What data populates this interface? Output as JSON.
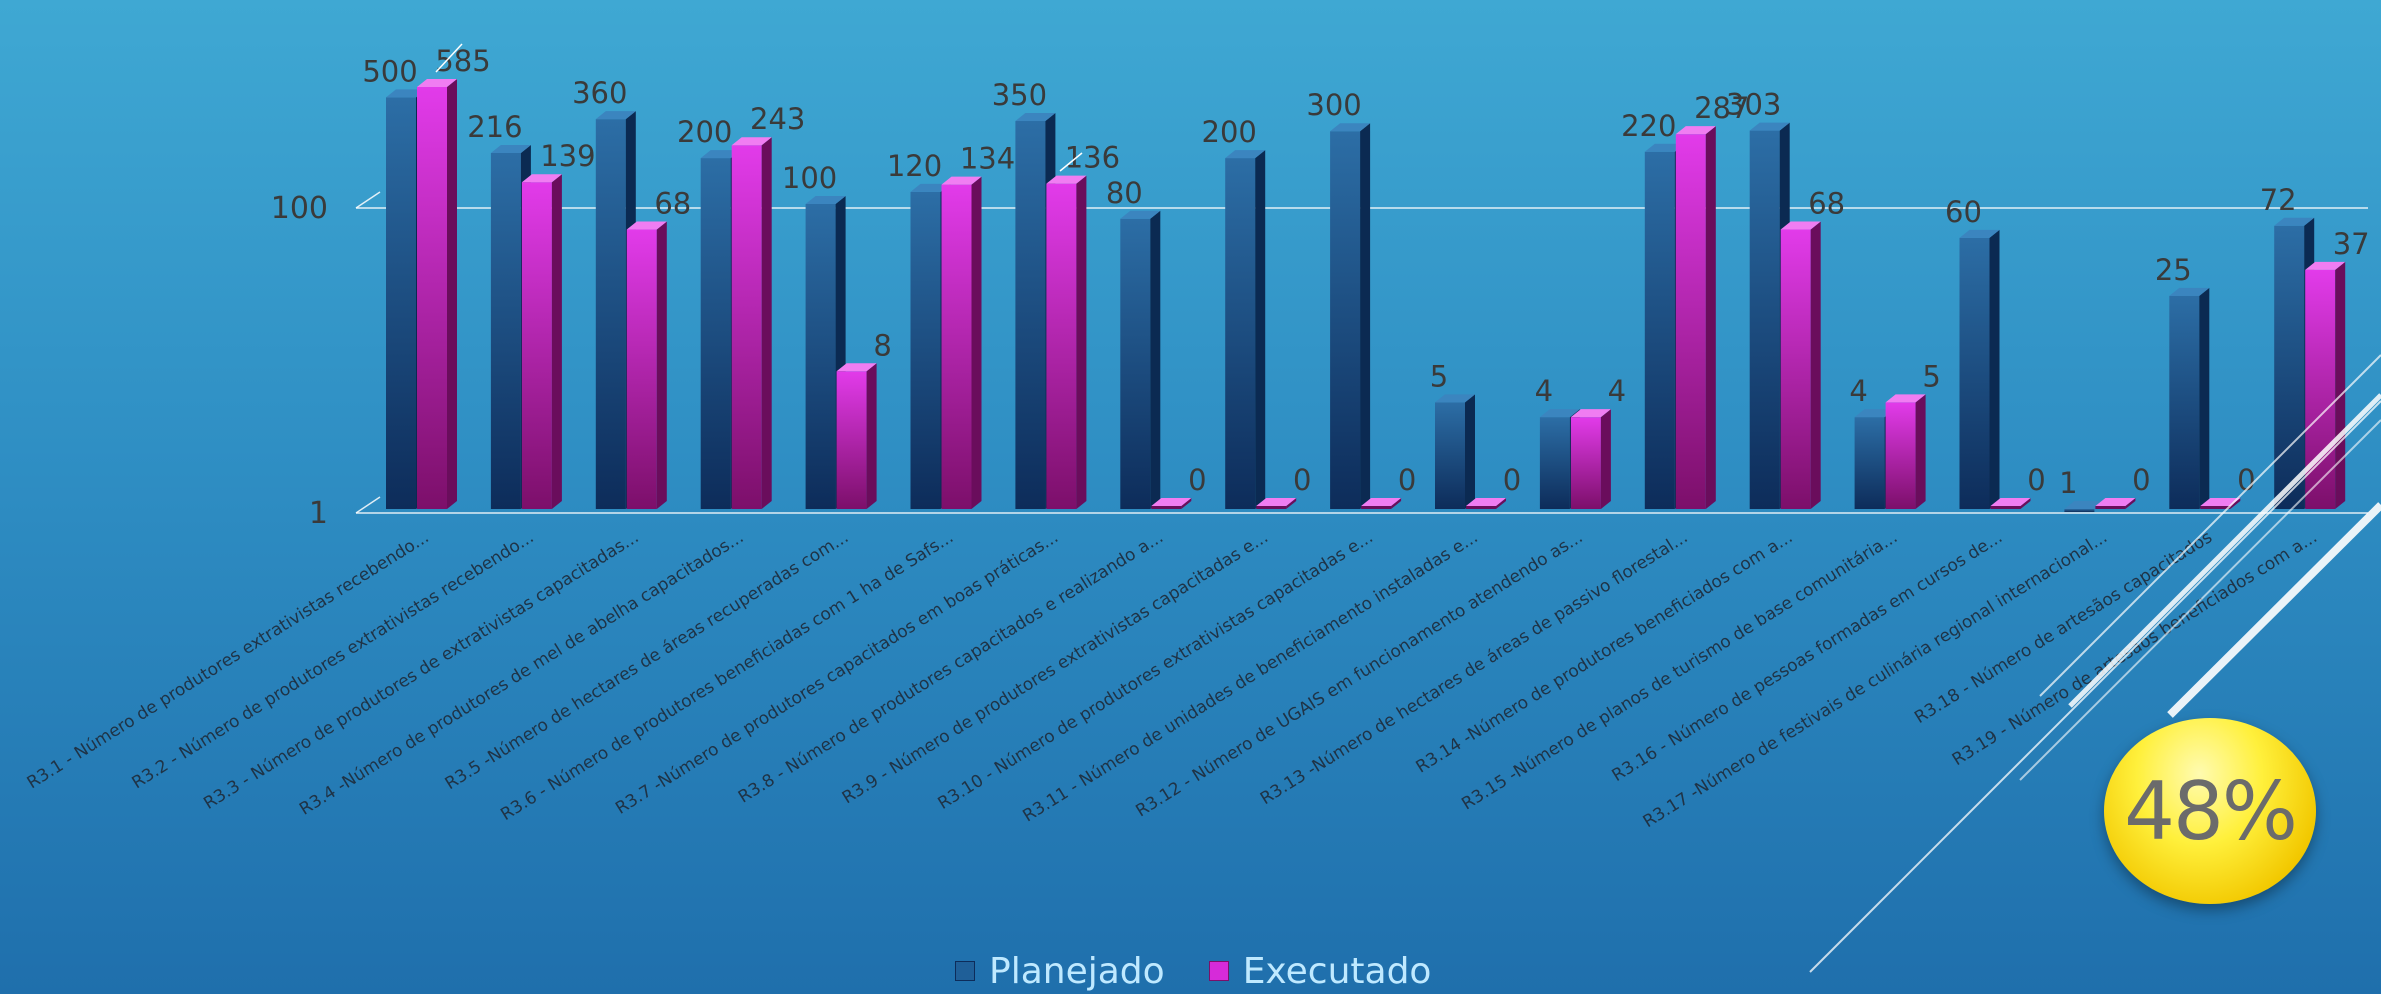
{
  "chart_data": {
    "type": "bar",
    "log_scale": true,
    "y_ticks": [
      "1",
      "100"
    ],
    "ylim": [
      1,
      1000
    ],
    "grid": true,
    "legend_position": "bottom",
    "categories": [
      "R3.1 - Número de produtores  extrativistas recebendo...",
      "R3.2 - Número de produtores extrativistas  recebendo...",
      "R3.3 - Número de produtores  de extrativistas capacitadas...",
      "R3.4 -Número de produtores de mel de abelha capacitados...",
      "R3.5 -Número de hectares de áreas recuperadas com...",
      "R3.6 - Número de produtores beneficiadas com 1 ha de Safs...",
      "R3.7 -Número de produtores capacitados em boas práticas...",
      "R3.8 - Número de produtores capacitados e realizando a...",
      "R3.9 - Número de produtores extrativistas capacitadas e...",
      "R3.10 - Número de produtores  extrativistas capacitadas e...",
      "R3.11 -  Número de unidades de beneficiamento instaladas e...",
      "R3.12 - Número de UGAIS em funcionamento atendendo as...",
      "R3.13 -Número de hectares de áreas de passivo florestal...",
      "R3.14 -Número de produtores beneficiados  com a...",
      "R3.15 -Número de planos de turismo de base comunitária...",
      "R3.16 - Número de pessoas formadas em cursos de...",
      "R3.17 -Número de festivais de culinária regional internacional...",
      "R3.18 - Número de artesãos capacitados",
      "R3.19 - Número de artesãos beneficiados com a..."
    ],
    "series": [
      {
        "name": "Planejado",
        "color": "#1f5f98",
        "values": [
          500,
          216,
          360,
          200,
          100,
          120,
          350,
          80,
          200,
          300,
          5,
          4,
          220,
          303,
          4,
          60,
          1,
          25,
          72
        ],
        "labels": [
          "500",
          "216",
          "360",
          "200",
          "100",
          "120",
          "350",
          "80",
          "200",
          "300",
          "5",
          "4",
          "220",
          "303",
          "4",
          "60",
          "1",
          "",
          "72"
        ]
      },
      {
        "name": "Executado",
        "color": "#d62bd9",
        "values": [
          585,
          139,
          68,
          243,
          8,
          134,
          136,
          0,
          0,
          0,
          0,
          4,
          287,
          68,
          5,
          0,
          0,
          0,
          37
        ],
        "labels": [
          "585",
          "139",
          "68",
          "243",
          "8",
          "134",
          "136",
          "0",
          "0",
          "0",
          "0",
          "4",
          "287",
          "68",
          "5",
          "0",
          "0",
          "0",
          "37"
        ]
      }
    ],
    "extra_labels": [
      {
        "category": 17,
        "text": "25"
      }
    ]
  },
  "legend": {
    "planejado": "Planejado",
    "executado": "Executado"
  },
  "badge": {
    "text": "48%"
  }
}
